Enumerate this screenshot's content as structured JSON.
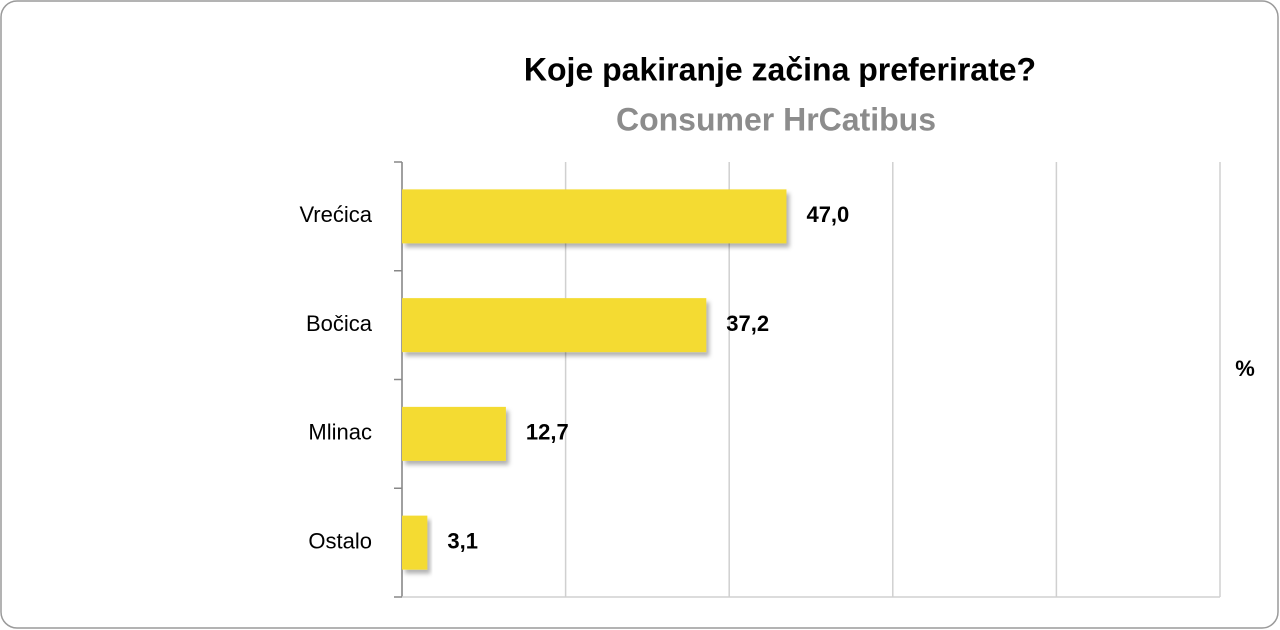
{
  "chart_data": {
    "type": "hbar",
    "title": "Koje pakiranje začina preferirate?",
    "subtitle": "Consumer HrCatibus",
    "axis_label": "%",
    "categories": [
      "Vrećica",
      "Bočica",
      "Mlinac",
      "Ostalo"
    ],
    "values": [
      47.0,
      37.2,
      12.7,
      3.1
    ],
    "value_labels": [
      "47,0",
      "37,2",
      "12,7",
      "3,1"
    ],
    "color": "#f4db33",
    "xlim": [
      0,
      100
    ],
    "xticks": [
      0,
      20,
      40,
      60,
      80,
      100
    ],
    "grid": true
  }
}
